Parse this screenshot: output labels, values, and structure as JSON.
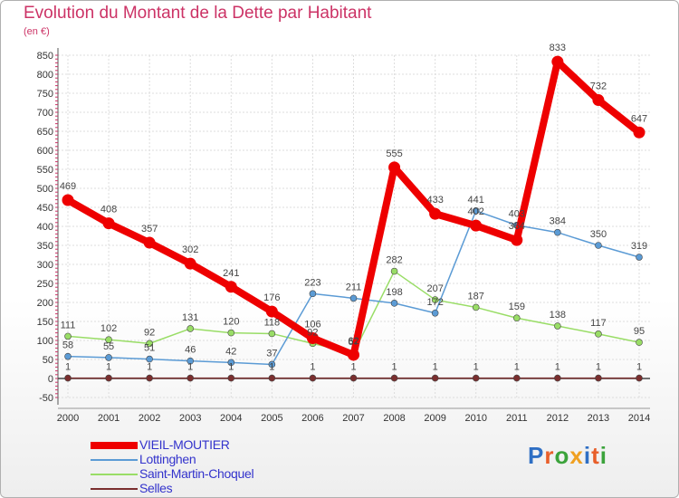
{
  "chart_data": {
    "type": "line",
    "title": "Evolution du Montant de la Dette par Habitant",
    "unit": "(en €)",
    "x": [
      "2000",
      "2001",
      "2002",
      "2003",
      "2004",
      "2005",
      "2006",
      "2007",
      "2008",
      "2009",
      "2010",
      "2011",
      "2012",
      "2013",
      "2014"
    ],
    "ylim": [
      -50,
      850
    ],
    "yticks": [
      -50,
      0,
      50,
      100,
      150,
      200,
      250,
      300,
      350,
      400,
      450,
      500,
      550,
      600,
      650,
      700,
      750,
      800,
      850
    ],
    "grid": true,
    "legend_position": "bottom-left",
    "series": [
      {
        "name": "VIEIL-MOUTIER",
        "color": "#ee0000",
        "values": [
          469,
          408,
          357,
          302,
          241,
          176,
          106,
          62,
          555,
          433,
          402,
          364,
          833,
          732,
          647
        ]
      },
      {
        "name": "Lottinghen",
        "color": "#5b9bd5",
        "values": [
          58,
          55,
          51,
          46,
          42,
          37,
          223,
          211,
          198,
          172,
          441,
          403,
          384,
          350,
          319
        ]
      },
      {
        "name": "Saint-Martin-Choquel",
        "color": "#99dd66",
        "values": [
          111,
          102,
          92,
          131,
          120,
          118,
          92,
          67,
          282,
          207,
          187,
          159,
          138,
          117,
          95
        ]
      },
      {
        "name": "Selles",
        "color": "#7a2e2e",
        "values": [
          1,
          1,
          1,
          1,
          1,
          1,
          1,
          1,
          1,
          1,
          1,
          1,
          1,
          1,
          1
        ]
      }
    ]
  },
  "logo": {
    "text": "Proxiti",
    "colors": [
      "#2f6fc4",
      "#e85f2a",
      "#3ba33b",
      "#f0a020",
      "#2f6fc4",
      "#e85f2a",
      "#3ba33b"
    ]
  }
}
